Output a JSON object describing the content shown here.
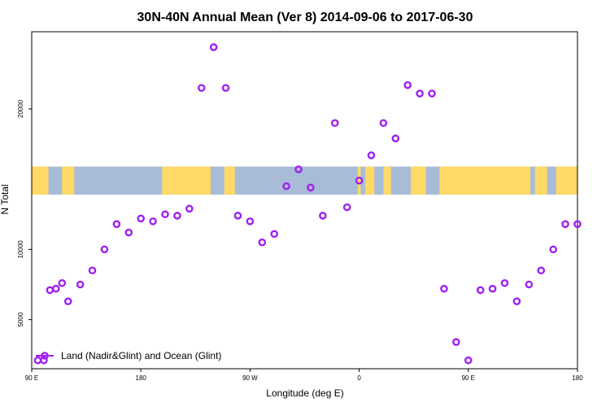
{
  "chart_data": {
    "type": "scatter",
    "title": "30N-40N Annual Mean (Ver 8)   2014-09-06 to 2017-06-30",
    "xlabel": "Longitude (deg E)",
    "ylabel": "N Total",
    "xlim": [
      90,
      450
    ],
    "ylim": [
      1500,
      25500
    ],
    "x_ticks": [
      {
        "value": 90,
        "label": "90 E"
      },
      {
        "value": 162,
        "label": "180"
      },
      {
        "value": 234,
        "label": "90 W"
      },
      {
        "value": 306,
        "label": "0"
      },
      {
        "value": 378,
        "label": "90 E"
      },
      {
        "value": 450,
        "label": "180"
      }
    ],
    "y_ticks": [
      {
        "value": 5000,
        "label": "5000"
      },
      {
        "value": 10000,
        "label": "10000"
      },
      {
        "value": 20000,
        "label": "20000"
      }
    ],
    "series": [
      {
        "name": "Land (Nadir&Glint) and Ocean (Glint)",
        "color": "#a020f0",
        "marker": "circle-open",
        "x": [
          94,
          98,
          102,
          106,
          110,
          114,
          122,
          130,
          138,
          146,
          154,
          162,
          170,
          178,
          186,
          194,
          202,
          210,
          218,
          226,
          234,
          242,
          250,
          258,
          266,
          274,
          282,
          290,
          298,
          306,
          314,
          322,
          330,
          338,
          346,
          354,
          362,
          370,
          378,
          386,
          394,
          402,
          410,
          418,
          426,
          434,
          442,
          450
        ],
        "y": [
          2100,
          2100,
          7100,
          7200,
          7600,
          6300,
          7500,
          8500,
          10000,
          11800,
          11200,
          12200,
          12000,
          12500,
          12400,
          12900,
          21500,
          24400,
          21500,
          12400,
          12000,
          10500,
          11100,
          14500,
          15700,
          14400,
          12400,
          19000,
          13000,
          14900,
          16700,
          19000,
          17900,
          21700,
          21100,
          21100,
          7200,
          3400,
          2100,
          7100,
          7200,
          7600,
          6300,
          7500,
          8500,
          10000,
          11800,
          11800
        ]
      }
    ],
    "background_map": {
      "latitude_band": "30N-40N",
      "land_color": "#ffd966",
      "ocean_color": "#a8bcd8",
      "y_range": [
        13900,
        15900
      ]
    },
    "legend": {
      "location": "bottom-left",
      "label": "Land (Nadir&Glint) and Ocean (Glint)"
    }
  }
}
